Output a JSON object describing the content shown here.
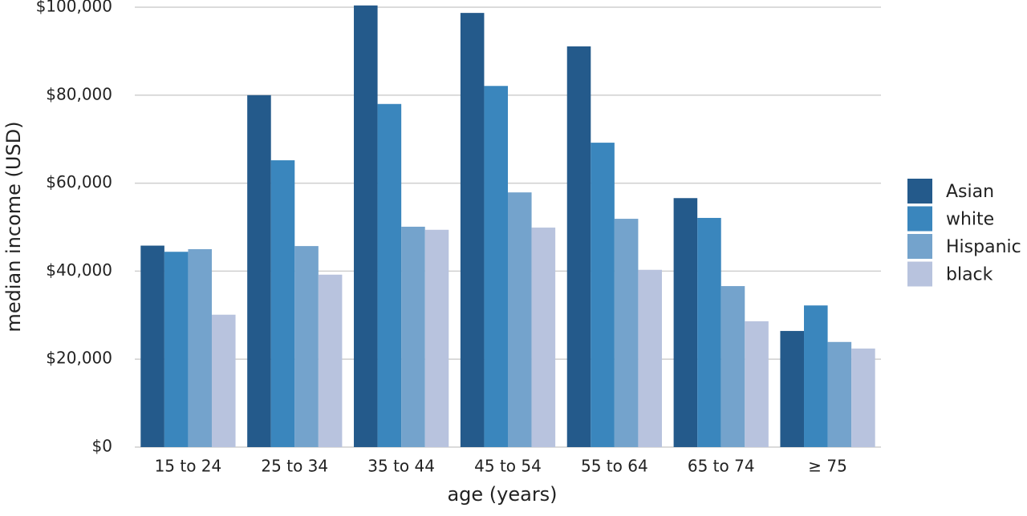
{
  "chart_data": {
    "type": "bar",
    "x_label": "age (years)",
    "y_label": "median income (USD)",
    "categories": [
      "15 to 24",
      "25 to 34",
      "35 to 44",
      "45 to 54",
      "55 to 64",
      "65 to 74",
      "≥ 75"
    ],
    "series": [
      {
        "name": "Asian",
        "color": "#245a8b",
        "values": [
          45800,
          80000,
          100400,
          98700,
          91100,
          56600,
          26400
        ]
      },
      {
        "name": "white",
        "color": "#3a86bd",
        "values": [
          44400,
          65200,
          78000,
          82100,
          69200,
          52100,
          32200
        ]
      },
      {
        "name": "Hispanic",
        "color": "#74a3cc",
        "values": [
          45000,
          45700,
          50100,
          57900,
          51900,
          36600,
          23900
        ]
      },
      {
        "name": "black",
        "color": "#b8c3de",
        "values": [
          30100,
          39200,
          49400,
          49900,
          40300,
          28600,
          22400
        ]
      }
    ],
    "ylim": [
      0,
      101000
    ],
    "yticks": [
      {
        "value": 0,
        "label": "$0"
      },
      {
        "value": 20000,
        "label": "$20,000"
      },
      {
        "value": 40000,
        "label": "$40,000"
      },
      {
        "value": 60000,
        "label": "$60,000"
      },
      {
        "value": 80000,
        "label": "$80,000"
      },
      {
        "value": 100000,
        "label": "$100,000"
      }
    ],
    "grid": true,
    "legend": "right"
  }
}
